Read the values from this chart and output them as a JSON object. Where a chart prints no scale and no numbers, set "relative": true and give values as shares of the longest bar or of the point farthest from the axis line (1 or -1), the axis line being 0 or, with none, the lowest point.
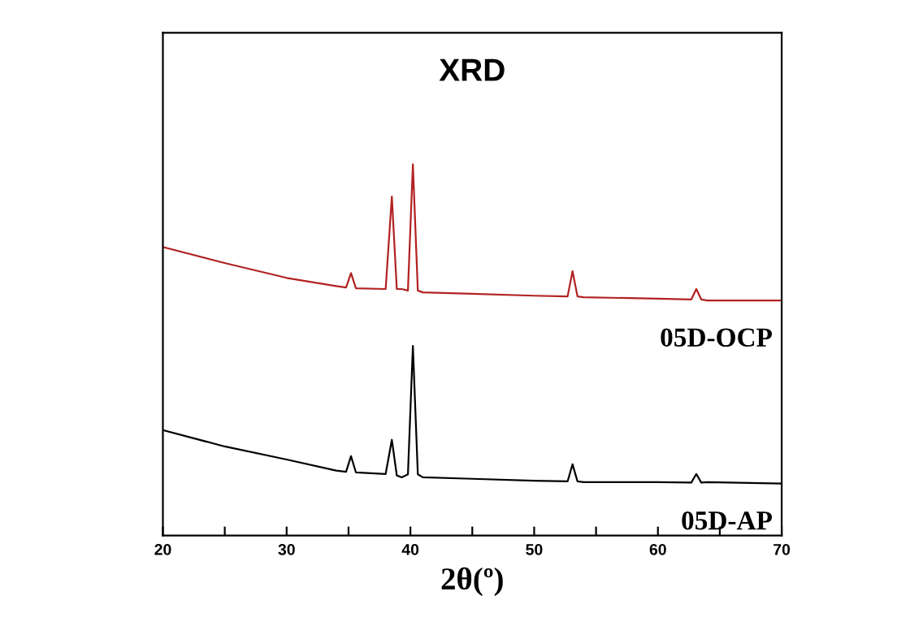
{
  "chart_data": {
    "type": "line",
    "title": "XRD",
    "xlabel": "2θ(º)",
    "relative": true,
    "xlim": [
      20,
      70
    ],
    "xticks": [
      20,
      {
        "value": 25,
        "label": null
      },
      30,
      {
        "value": 35,
        "label": null
      },
      40,
      {
        "value": 45,
        "label": null
      },
      50,
      {
        "value": 55,
        "label": null
      },
      60,
      {
        "value": 65,
        "label": null
      },
      70
    ],
    "grid": false,
    "legend": false,
    "marker": "none",
    "line_style": "solid",
    "series": [
      {
        "name": "05D-OCP",
        "color": "#b22222",
        "x": [
          20,
          25,
          30,
          34,
          34.8,
          35.2,
          35.6,
          38,
          38.5,
          38.9,
          39.3,
          39.8,
          40.2,
          40.6,
          41,
          45,
          50,
          52.7,
          53.1,
          53.5,
          54,
          60,
          62.7,
          63.1,
          63.5,
          64,
          70
        ],
        "values": [
          0.777,
          0.734,
          0.694,
          0.672,
          0.668,
          0.707,
          0.666,
          0.664,
          0.913,
          0.664,
          0.664,
          0.66,
          1,
          0.66,
          0.655,
          0.651,
          0.646,
          0.644,
          0.712,
          0.644,
          0.642,
          0.638,
          0.636,
          0.664,
          0.636,
          0.633,
          0.633
        ]
      },
      {
        "name": "05D-AP",
        "color": "#000000",
        "x": [
          20,
          25,
          30,
          34,
          34.8,
          35.2,
          35.6,
          38,
          38.5,
          38.9,
          39.3,
          39.8,
          40.2,
          40.6,
          41,
          45,
          50,
          52.7,
          53.1,
          53.5,
          54,
          60,
          62.7,
          63.1,
          63.5,
          64,
          70
        ],
        "values": [
          0.284,
          0.24,
          0.205,
          0.175,
          0.172,
          0.214,
          0.17,
          0.166,
          0.258,
          0.162,
          0.157,
          0.165,
          0.511,
          0.165,
          0.157,
          0.153,
          0.148,
          0.146,
          0.192,
          0.146,
          0.144,
          0.144,
          0.143,
          0.166,
          0.143,
          0.144,
          0.14
        ]
      }
    ]
  }
}
